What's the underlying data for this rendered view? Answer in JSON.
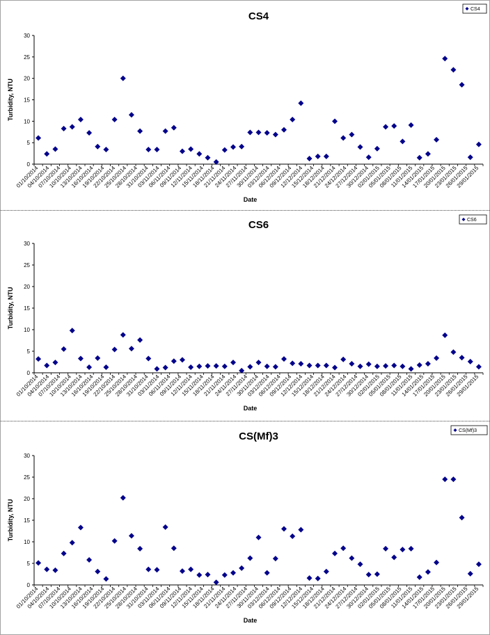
{
  "dates": [
    "01/10/2014",
    "04/10/2014",
    "07/10/2014",
    "10/10/2014",
    "13/10/2014",
    "16/10/2014",
    "19/10/2014",
    "22/10/2014",
    "25/10/2014",
    "28/10/2014",
    "31/10/2014",
    "03/11/2014",
    "06/11/2014",
    "09/11/2014",
    "12/11/2014",
    "15/11/2014",
    "18/11/2014",
    "21/11/2014",
    "24/11/2014",
    "27/11/2014",
    "30/11/2014",
    "03/12/2014",
    "06/12/2014",
    "09/12/2014",
    "12/12/2014",
    "15/12/2014",
    "18/12/2014",
    "21/12/2014",
    "24/12/2014",
    "27/12/2014",
    "30/12/2014",
    "02/01/2015",
    "05/01/2015",
    "08/01/2015",
    "11/01/2015",
    "14/01/2015",
    "17/01/2015",
    "20/01/2015",
    "23/01/2015",
    "26/01/2015",
    "29/01/2015"
  ],
  "chart_data": [
    {
      "type": "scatter",
      "title": "CS4",
      "xlabel": "Date",
      "ylabel": "Turbidity, NTU",
      "ylim": [
        0,
        30
      ],
      "yticks": [
        0,
        5,
        10,
        15,
        20,
        25,
        30
      ],
      "legend": "top-right",
      "grid": false,
      "series": [
        {
          "name": "CS4",
          "color": "#00008b",
          "points": [
            [
              0,
              6.1
            ],
            [
              1,
              2.4
            ],
            [
              2,
              3.5
            ],
            [
              3,
              8.3
            ],
            [
              4,
              8.7
            ],
            [
              5,
              10.4
            ],
            [
              6,
              7.3
            ],
            [
              7,
              4.1
            ],
            [
              8,
              3.4
            ],
            [
              9,
              10.4
            ],
            [
              10,
              20.0
            ],
            [
              11,
              11.5
            ],
            [
              12,
              7.7
            ],
            [
              13,
              3.4
            ],
            [
              14,
              3.4
            ],
            [
              15,
              7.7
            ],
            [
              16,
              8.5
            ],
            [
              17,
              3.0
            ],
            [
              18,
              3.5
            ],
            [
              19,
              2.4
            ],
            [
              20,
              1.5
            ],
            [
              21,
              0.5
            ],
            [
              22,
              3.3
            ],
            [
              23,
              4.0
            ],
            [
              24,
              4.1
            ],
            [
              25,
              7.4
            ],
            [
              26,
              7.4
            ],
            [
              27,
              7.3
            ],
            [
              28,
              6.9
            ],
            [
              29,
              8.0
            ],
            [
              30,
              10.4
            ],
            [
              31,
              14.2
            ],
            [
              32,
              1.3
            ],
            [
              33,
              1.8
            ],
            [
              34,
              1.8
            ],
            [
              35,
              10.0
            ],
            [
              36,
              6.1
            ],
            [
              37,
              6.9
            ],
            [
              38,
              4.0
            ],
            [
              39,
              1.6
            ],
            [
              40,
              3.6
            ],
            [
              41,
              8.7
            ],
            [
              42,
              8.9
            ],
            [
              43,
              5.3
            ],
            [
              44,
              9.1
            ],
            [
              45,
              1.5
            ],
            [
              46,
              2.4
            ],
            [
              47,
              5.7
            ],
            [
              48,
              24.6
            ],
            [
              49,
              22.0
            ],
            [
              50,
              18.5
            ],
            [
              51,
              1.6
            ],
            [
              52,
              4.6
            ]
          ]
        }
      ]
    },
    {
      "type": "scatter",
      "title": "CS6",
      "xlabel": "Date",
      "ylabel": "Turbidity, NTU",
      "ylim": [
        0,
        30
      ],
      "yticks": [
        0,
        5,
        10,
        15,
        20,
        25,
        30
      ],
      "legend": "top-right",
      "grid": false,
      "series": [
        {
          "name": "CS6",
          "color": "#00008b",
          "points": [
            [
              0,
              3.2
            ],
            [
              1,
              1.7
            ],
            [
              2,
              2.4
            ],
            [
              3,
              5.5
            ],
            [
              4,
              9.8
            ],
            [
              5,
              3.3
            ],
            [
              6,
              1.3
            ],
            [
              7,
              3.4
            ],
            [
              8,
              1.3
            ],
            [
              9,
              5.4
            ],
            [
              10,
              8.8
            ],
            [
              11,
              5.6
            ],
            [
              12,
              7.6
            ],
            [
              13,
              3.3
            ],
            [
              14,
              0.9
            ],
            [
              15,
              1.2
            ],
            [
              16,
              2.7
            ],
            [
              17,
              3.0
            ],
            [
              18,
              1.3
            ],
            [
              19,
              1.5
            ],
            [
              20,
              1.6
            ],
            [
              21,
              1.6
            ],
            [
              22,
              1.5
            ],
            [
              23,
              2.4
            ],
            [
              24,
              0.5
            ],
            [
              25,
              1.4
            ],
            [
              26,
              2.4
            ],
            [
              27,
              1.5
            ],
            [
              28,
              1.4
            ],
            [
              29,
              3.2
            ],
            [
              30,
              2.2
            ],
            [
              31,
              2.1
            ],
            [
              32,
              1.7
            ],
            [
              33,
              1.7
            ],
            [
              34,
              1.7
            ],
            [
              35,
              1.2
            ],
            [
              36,
              3.1
            ],
            [
              37,
              2.1
            ],
            [
              38,
              1.5
            ],
            [
              39,
              2.0
            ],
            [
              40,
              1.5
            ],
            [
              41,
              1.6
            ],
            [
              42,
              1.7
            ],
            [
              43,
              1.5
            ],
            [
              44,
              0.9
            ],
            [
              45,
              1.8
            ],
            [
              46,
              2.1
            ],
            [
              47,
              3.4
            ],
            [
              48,
              8.7
            ],
            [
              49,
              4.8
            ],
            [
              50,
              3.5
            ],
            [
              51,
              2.6
            ],
            [
              52,
              1.4
            ]
          ]
        }
      ]
    },
    {
      "type": "scatter",
      "title": "CS(Mf)3",
      "xlabel": "Date",
      "ylabel": "Turbidity, NTU",
      "ylim": [
        0,
        30
      ],
      "yticks": [
        0,
        5,
        10,
        15,
        20,
        25,
        30
      ],
      "legend": "top-right",
      "grid": false,
      "series": [
        {
          "name": "CS(Mf)3",
          "color": "#00008b",
          "points": [
            [
              0,
              5.1
            ],
            [
              1,
              3.6
            ],
            [
              2,
              3.4
            ],
            [
              3,
              7.3
            ],
            [
              4,
              9.8
            ],
            [
              5,
              13.3
            ],
            [
              6,
              5.8
            ],
            [
              7,
              3.1
            ],
            [
              8,
              1.4
            ],
            [
              9,
              10.2
            ],
            [
              10,
              20.2
            ],
            [
              11,
              11.4
            ],
            [
              12,
              8.4
            ],
            [
              13,
              3.6
            ],
            [
              14,
              3.5
            ],
            [
              15,
              13.4
            ],
            [
              16,
              8.5
            ],
            [
              17,
              3.2
            ],
            [
              18,
              3.6
            ],
            [
              19,
              2.3
            ],
            [
              20,
              2.4
            ],
            [
              21,
              0.6
            ],
            [
              22,
              2.3
            ],
            [
              23,
              2.8
            ],
            [
              24,
              3.9
            ],
            [
              25,
              6.2
            ],
            [
              26,
              11.0
            ],
            [
              27,
              2.8
            ],
            [
              28,
              6.1
            ],
            [
              29,
              13.0
            ],
            [
              30,
              11.3
            ],
            [
              31,
              12.8
            ],
            [
              32,
              1.6
            ],
            [
              33,
              1.5
            ],
            [
              34,
              3.1
            ],
            [
              35,
              7.3
            ],
            [
              36,
              8.5
            ],
            [
              37,
              6.2
            ],
            [
              38,
              4.8
            ],
            [
              39,
              2.4
            ],
            [
              40,
              2.5
            ],
            [
              41,
              8.4
            ],
            [
              42,
              6.4
            ],
            [
              43,
              8.2
            ],
            [
              44,
              8.4
            ],
            [
              45,
              1.8
            ],
            [
              46,
              3.0
            ],
            [
              47,
              5.2
            ],
            [
              48,
              24.5
            ],
            [
              49,
              24.5
            ],
            [
              50,
              15.6
            ],
            [
              51,
              2.6
            ],
            [
              52,
              4.8
            ]
          ]
        }
      ]
    }
  ]
}
